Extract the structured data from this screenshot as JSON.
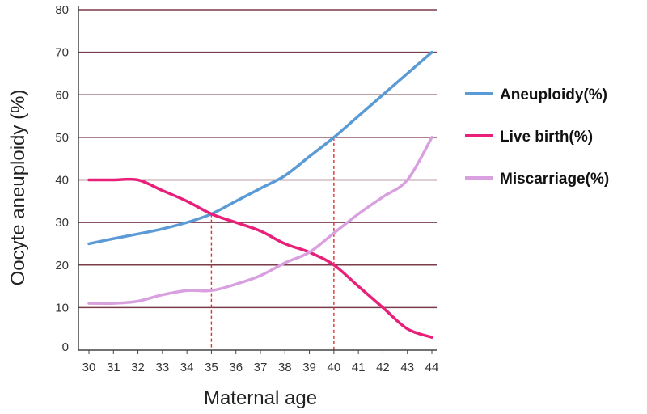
{
  "chart_data": {
    "type": "line",
    "title": "",
    "xlabel": "Maternal age",
    "ylabel": "Oocyte aneuploidy (%)",
    "x": [
      30,
      31,
      32,
      33,
      34,
      35,
      36,
      37,
      38,
      39,
      40,
      41,
      42,
      43,
      44
    ],
    "xlim": [
      30,
      44
    ],
    "ylim": [
      0,
      80
    ],
    "yticks": [
      0,
      10,
      20,
      30,
      40,
      50,
      60,
      70,
      80
    ],
    "grid": "horizontal",
    "legend_position": "right",
    "series": [
      {
        "name": "Aneuploidy(%)",
        "color": "#5b9bd5",
        "values": [
          25,
          26.2,
          27.3,
          28.5,
          30,
          32,
          35,
          38,
          41,
          45.5,
          50,
          55,
          60,
          65,
          70
        ]
      },
      {
        "name": "Live birth(%)",
        "color": "#e8207a",
        "values": [
          40,
          40,
          40,
          37.5,
          35,
          32,
          30,
          28,
          25,
          23,
          20,
          15,
          10,
          5,
          3
        ]
      },
      {
        "name": "Miscarriage(%)",
        "color": "#d9a0e0",
        "values": [
          11,
          11,
          11.5,
          13,
          14,
          14,
          15.5,
          17.5,
          20.5,
          23,
          27.5,
          32,
          36,
          40,
          50
        ]
      }
    ],
    "reference_lines": [
      {
        "x": 35,
        "y": 32,
        "color": "#e03030"
      },
      {
        "x": 40,
        "y": 50,
        "color": "#e03030"
      }
    ]
  }
}
